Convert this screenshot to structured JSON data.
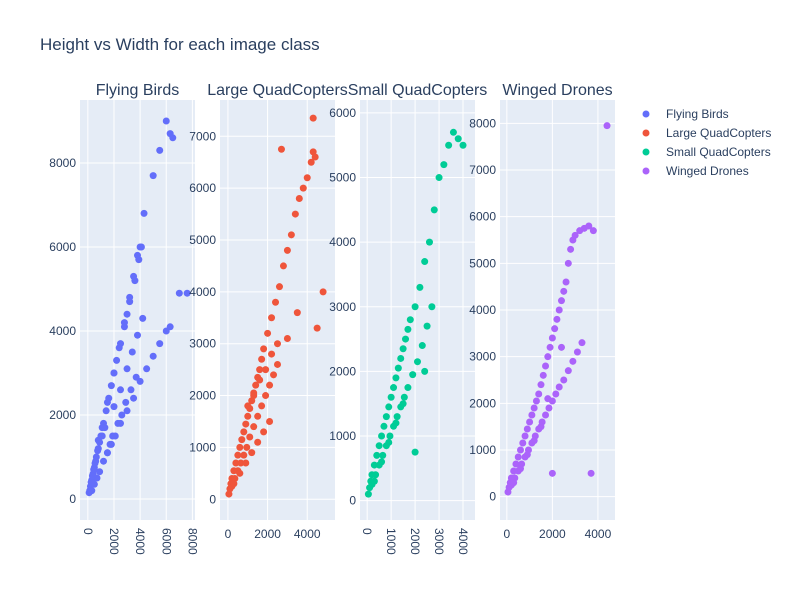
{
  "chart_title": "Height vs Width for each image class",
  "colors": {
    "plot_bg": "#e5ecf6",
    "grid": "#ffffff",
    "text": "#2a3f5f"
  },
  "legend": {
    "placement": "top-right",
    "items": [
      {
        "label": "Flying Birds",
        "color": "#636efa"
      },
      {
        "label": "Large QuadCopters",
        "color": "#ef553b"
      },
      {
        "label": "Small QuadCopters",
        "color": "#00cc96"
      },
      {
        "label": "Winged Drones",
        "color": "#ab63fa"
      }
    ]
  },
  "chart_data": [
    {
      "type": "scatter",
      "title": "Flying Birds",
      "color": "#636efa",
      "xlabel": "",
      "ylabel": "",
      "xlim": [
        -600,
        8200
      ],
      "ylim": [
        -500,
        9500
      ],
      "x_ticks": [
        0,
        2000,
        4000,
        6000,
        8000
      ],
      "y_ticks": [
        0,
        2000,
        4000,
        6000,
        8000
      ],
      "x_tick_rotation": 90,
      "grid": true,
      "x": [
        100,
        200,
        300,
        400,
        500,
        600,
        800,
        1000,
        1200,
        1500,
        1800,
        2000,
        2200,
        2500,
        2800,
        3000,
        3200,
        3500,
        3800,
        4000,
        4300,
        5000,
        5500,
        6000,
        6300,
        6500,
        7000,
        7600,
        300,
        500,
        700,
        900,
        1200,
        1500,
        1800,
        2100,
        2500,
        3000,
        3500,
        4000,
        4500,
        5000,
        5500,
        6000,
        6300,
        800,
        1100,
        1400,
        1600,
        2000,
        2400,
        2800,
        3200,
        3600,
        3900,
        4100,
        2000,
        2500,
        3000,
        3400,
        3800,
        4200,
        1500,
        1700,
        1900,
        2300,
        2600,
        2900,
        3300,
        3700,
        150,
        250,
        350,
        450,
        550,
        650,
        750,
        900,
        1100,
        1300
      ],
      "y": [
        150,
        300,
        450,
        600,
        750,
        900,
        1200,
        1500,
        1800,
        2300,
        2700,
        3000,
        3300,
        3700,
        4100,
        4400,
        4800,
        5300,
        5800,
        6000,
        6800,
        7700,
        8300,
        9000,
        8700,
        8600,
        4900,
        4900,
        200,
        350,
        500,
        650,
        900,
        1100,
        1300,
        1500,
        1800,
        2100,
        2400,
        2800,
        3100,
        3400,
        3700,
        4000,
        4100,
        1400,
        1700,
        2100,
        2400,
        3000,
        3600,
        4200,
        4700,
        5200,
        5700,
        6000,
        2200,
        2600,
        3100,
        3500,
        3900,
        4300,
        1100,
        1300,
        1500,
        1800,
        2000,
        2300,
        2600,
        2900,
        200,
        400,
        550,
        700,
        850,
        1000,
        1150,
        1350,
        1500,
        1700
      ]
    },
    {
      "type": "scatter",
      "title": "Large QuadCopters",
      "color": "#ef553b",
      "xlabel": "",
      "ylabel": "",
      "xlim": [
        -400,
        5400
      ],
      "ylim": [
        -400,
        7700
      ],
      "x_ticks": [
        0,
        2000,
        4000
      ],
      "y_ticks": [
        0,
        1000,
        2000,
        3000,
        4000,
        5000,
        6000,
        7000
      ],
      "x_tick_rotation": 0,
      "grid": true,
      "x": [
        50,
        100,
        150,
        200,
        300,
        400,
        500,
        600,
        700,
        800,
        900,
        1000,
        1100,
        1200,
        1300,
        1400,
        1500,
        1600,
        1700,
        1800,
        2000,
        2200,
        2400,
        2600,
        2800,
        3000,
        3200,
        3400,
        3600,
        3800,
        4000,
        4200,
        4300,
        4400,
        4500,
        4800,
        2700,
        4300,
        200,
        350,
        500,
        650,
        800,
        950,
        1100,
        1300,
        1500,
        1700,
        1900,
        2100,
        2300,
        2500,
        3000,
        3500,
        300,
        600,
        900,
        1200,
        1500,
        1800,
        2100,
        1000,
        1300,
        1600,
        1900,
        2200,
        2500
      ],
      "y": [
        100,
        200,
        300,
        400,
        550,
        700,
        850,
        1000,
        1150,
        1300,
        1450,
        1600,
        1750,
        1900,
        2050,
        2200,
        2350,
        2500,
        2700,
        2900,
        3200,
        3500,
        3800,
        4100,
        4500,
        4800,
        5100,
        5500,
        5800,
        6000,
        6200,
        6500,
        6700,
        6600,
        3300,
        4000,
        6750,
        7350,
        250,
        400,
        550,
        700,
        850,
        1000,
        1200,
        1400,
        1600,
        1800,
        2000,
        2200,
        2400,
        2600,
        3100,
        3600,
        300,
        500,
        700,
        900,
        1100,
        1300,
        1500,
        1800,
        2000,
        2300,
        2500,
        2800,
        3000
      ]
    },
    {
      "type": "scatter",
      "title": "Small QuadCopters",
      "color": "#00cc96",
      "xlabel": "",
      "ylabel": "",
      "xlim": [
        -300,
        4500
      ],
      "ylim": [
        -300,
        6200
      ],
      "x_ticks": [
        0,
        1000,
        2000,
        3000,
        4000
      ],
      "y_ticks": [
        0,
        1000,
        2000,
        3000,
        4000,
        5000,
        6000
      ],
      "x_tick_rotation": 90,
      "grid": true,
      "x": [
        50,
        100,
        150,
        200,
        300,
        400,
        500,
        600,
        700,
        800,
        900,
        1000,
        1100,
        1200,
        1300,
        1400,
        1500,
        1600,
        1700,
        1800,
        2000,
        2200,
        2400,
        2600,
        2800,
        3000,
        3200,
        3400,
        3600,
        3800,
        4000,
        2000,
        2400,
        200,
        350,
        500,
        650,
        800,
        950,
        1100,
        1250,
        1400,
        1550,
        1700,
        1900,
        2100,
        2300,
        2500,
        2700,
        300,
        600,
        900,
        1200,
        1500
      ],
      "y": [
        100,
        200,
        300,
        400,
        550,
        700,
        850,
        1000,
        1150,
        1300,
        1450,
        1600,
        1750,
        1900,
        2050,
        2200,
        2350,
        2500,
        2650,
        2800,
        3000,
        3300,
        3700,
        4000,
        4500,
        5000,
        5200,
        5500,
        5700,
        5600,
        5500,
        750,
        2000,
        250,
        400,
        550,
        700,
        850,
        1000,
        1150,
        1300,
        1450,
        1600,
        1750,
        1950,
        2150,
        2400,
        2700,
        3000,
        300,
        600,
        900,
        1200,
        1500
      ]
    },
    {
      "type": "scatter",
      "title": "Winged Drones",
      "color": "#ab63fa",
      "xlabel": "",
      "ylabel": "",
      "xlim": [
        -300,
        4750
      ],
      "ylim": [
        -500,
        8500
      ],
      "x_ticks": [
        0,
        2000,
        4000
      ],
      "y_ticks": [
        0,
        1000,
        2000,
        3000,
        4000,
        5000,
        6000,
        7000,
        8000
      ],
      "x_tick_rotation": 0,
      "grid": true,
      "x": [
        50,
        100,
        150,
        200,
        300,
        400,
        500,
        600,
        700,
        800,
        900,
        1000,
        1100,
        1200,
        1300,
        1400,
        1500,
        1600,
        1700,
        1800,
        1900,
        2000,
        2100,
        2200,
        2300,
        2400,
        2500,
        2600,
        2700,
        2800,
        2900,
        3000,
        3200,
        3400,
        3600,
        3800,
        4400,
        2000,
        3700,
        2400,
        1800,
        200,
        350,
        500,
        650,
        800,
        950,
        1100,
        1250,
        1400,
        1550,
        1700,
        1850,
        2000,
        2150,
        2300,
        2500,
        2700,
        2900,
        3100,
        3300,
        300,
        600,
        900,
        1200,
        1500
      ],
      "y": [
        100,
        200,
        300,
        400,
        550,
        700,
        850,
        1000,
        1150,
        1300,
        1450,
        1600,
        1750,
        1900,
        2050,
        2200,
        2400,
        2600,
        2800,
        3000,
        3200,
        3400,
        3600,
        3800,
        4000,
        4200,
        4400,
        4600,
        5000,
        5300,
        5500,
        5600,
        5700,
        5750,
        5800,
        5700,
        7950,
        500,
        500,
        3200,
        2100,
        250,
        400,
        550,
        700,
        850,
        1000,
        1150,
        1300,
        1450,
        1600,
        1750,
        1900,
        2050,
        2200,
        2350,
        2500,
        2700,
        2900,
        3100,
        3300,
        300,
        600,
        900,
        1200,
        1500
      ]
    }
  ]
}
